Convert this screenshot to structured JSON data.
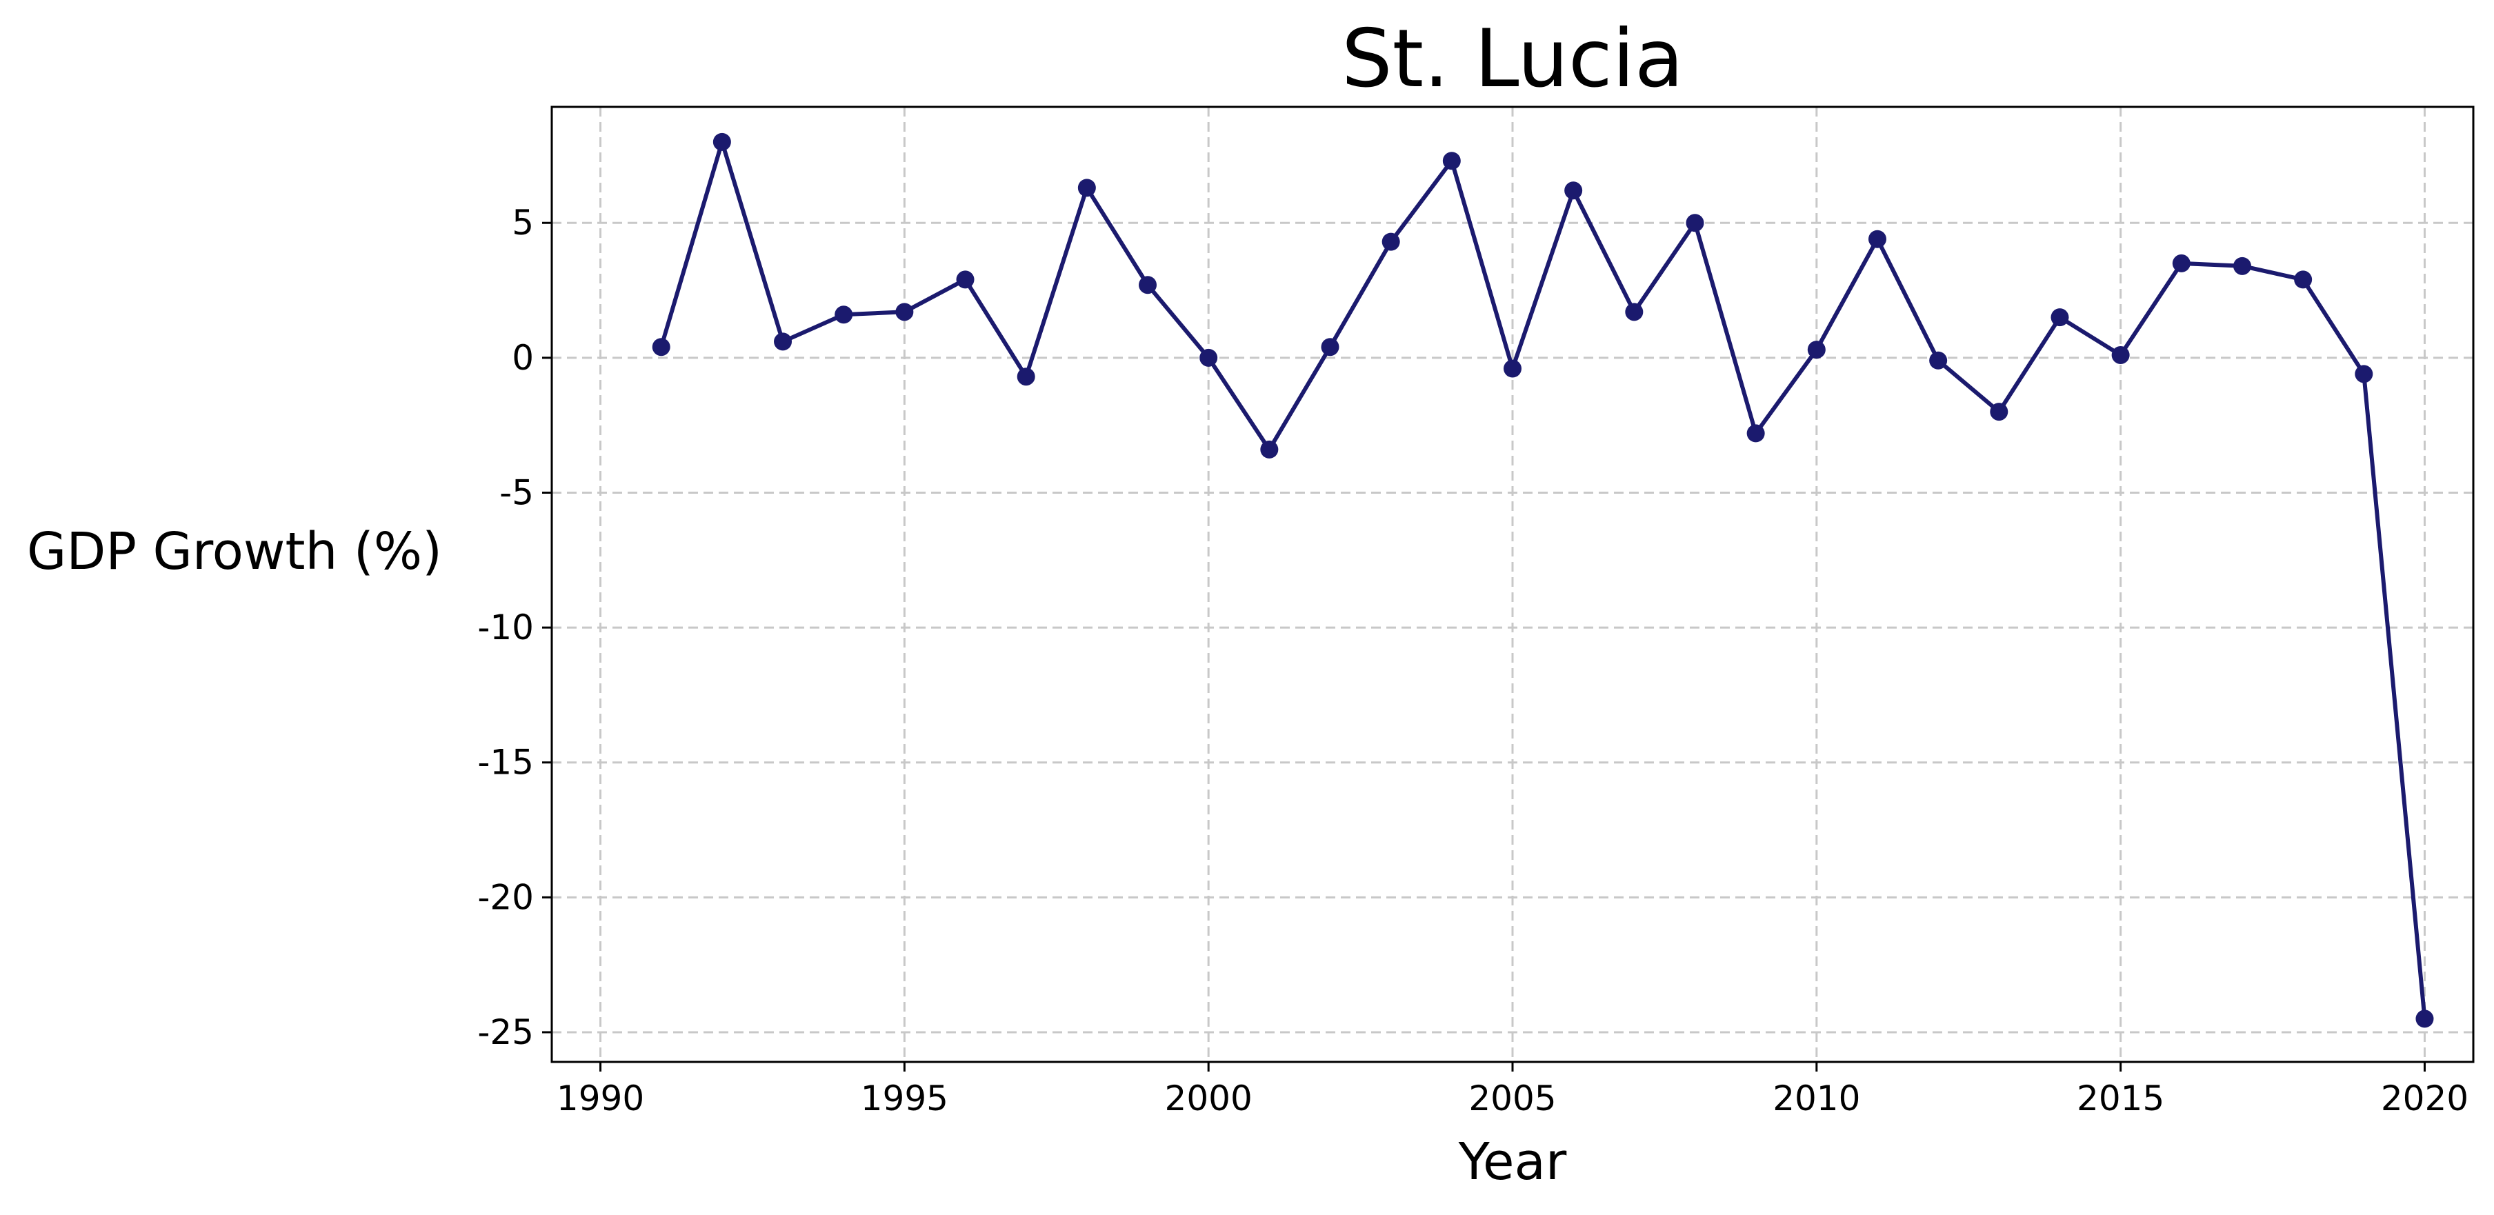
{
  "chart_data": {
    "type": "line",
    "title": "St. Lucia",
    "xlabel": "Year",
    "ylabel": "GDP Growth (%)",
    "xlim": [
      1989.2,
      2020.8
    ],
    "ylim": [
      -26.1,
      9.3
    ],
    "xticks": [
      1990,
      1995,
      2000,
      2005,
      2010,
      2015,
      2020
    ],
    "xtick_labels": [
      "1990",
      "1995",
      "2000",
      "2005",
      "2010",
      "2015",
      "2020"
    ],
    "yticks": [
      5,
      0,
      -5,
      -10,
      -15,
      -20,
      -25
    ],
    "ytick_labels": [
      "5",
      "0",
      "-5",
      "-10",
      "-15",
      "-20",
      "-25"
    ],
    "grid": true,
    "colors": {
      "line": "#1b1a6e",
      "grid": "#c8c8c8",
      "axes": "#000000"
    },
    "series": [
      {
        "name": "GDP Growth (%)",
        "x": [
          1991,
          1992,
          1993,
          1994,
          1995,
          1996,
          1997,
          1998,
          1999,
          2000,
          2001,
          2002,
          2003,
          2004,
          2005,
          2006,
          2007,
          2008,
          2009,
          2010,
          2011,
          2012,
          2013,
          2014,
          2015,
          2016,
          2017,
          2018,
          2019,
          2020
        ],
        "values": [
          0.4,
          8.0,
          0.6,
          1.6,
          1.7,
          2.9,
          -0.7,
          6.3,
          2.7,
          0.0,
          -3.4,
          0.4,
          4.3,
          7.3,
          -0.4,
          6.2,
          1.7,
          5.0,
          -2.8,
          0.3,
          4.4,
          -0.1,
          -2.0,
          1.5,
          0.1,
          3.5,
          3.4,
          2.9,
          -0.6,
          -24.5
        ]
      }
    ]
  }
}
